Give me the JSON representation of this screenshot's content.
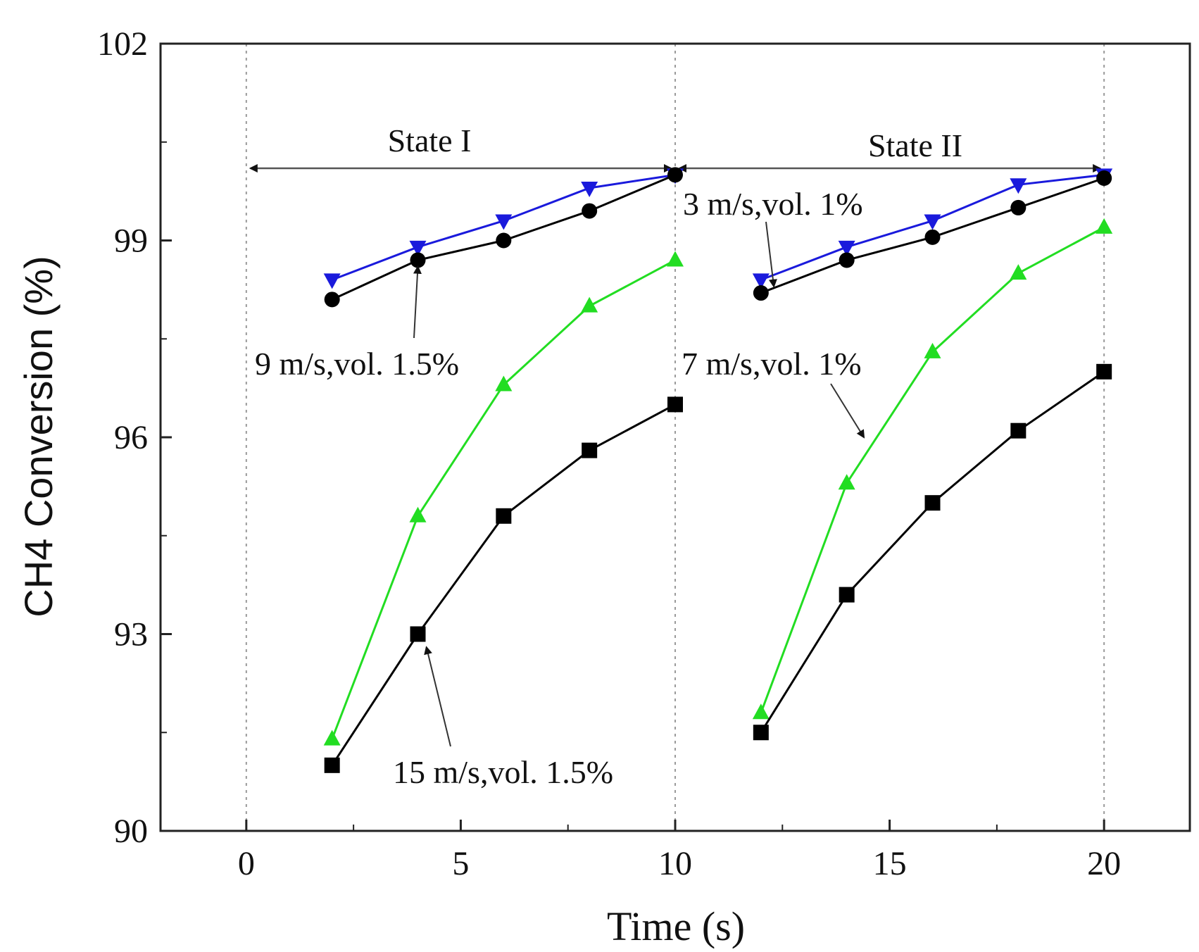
{
  "chart_data": {
    "type": "line",
    "title": "",
    "xlabel": "Time (s)",
    "ylabel": "CH4 Conversion (%)",
    "xlim": [
      -2,
      22
    ],
    "ylim": [
      90,
      102
    ],
    "xticks": [
      0,
      5,
      10,
      15,
      20
    ],
    "xtick_labels": [
      "0",
      "5",
      "10",
      "15",
      "20"
    ],
    "yticks": [
      90,
      93,
      96,
      99,
      102
    ],
    "ytick_labels": [
      "90",
      "93",
      "96",
      "99",
      "102"
    ],
    "grid": "vertical dotted lines at 0, 10, 20",
    "series": [
      {
        "name": "3 m/s,vol. 1%",
        "marker": "triangle-down",
        "color": "#1a1adc",
        "segments": [
          {
            "x": [
              2,
              4,
              6,
              8,
              10
            ],
            "y": [
              98.4,
              98.9,
              99.3,
              99.8,
              100.0
            ]
          },
          {
            "x": [
              12,
              14,
              16,
              18,
              20
            ],
            "y": [
              98.4,
              98.9,
              99.3,
              99.85,
              100.0
            ]
          }
        ]
      },
      {
        "name": "9 m/s,vol. 1.5%",
        "marker": "circle",
        "color": "#000000",
        "segments": [
          {
            "x": [
              2,
              4,
              6,
              8,
              10
            ],
            "y": [
              98.1,
              98.7,
              99.0,
              99.45,
              100.0
            ]
          },
          {
            "x": [
              12,
              14,
              16,
              18,
              20
            ],
            "y": [
              98.2,
              98.7,
              99.05,
              99.5,
              99.95
            ]
          }
        ]
      },
      {
        "name": "7 m/s,vol. 1%",
        "marker": "triangle-up",
        "color": "#22dd22",
        "segments": [
          {
            "x": [
              2,
              4,
              6,
              8,
              10
            ],
            "y": [
              91.4,
              94.8,
              96.8,
              98.0,
              98.7
            ]
          },
          {
            "x": [
              12,
              14,
              16,
              18,
              20
            ],
            "y": [
              91.8,
              95.3,
              97.3,
              98.5,
              99.2
            ]
          }
        ]
      },
      {
        "name": "15 m/s,vol. 1.5%",
        "marker": "square",
        "color": "#000000",
        "segments": [
          {
            "x": [
              2,
              4,
              6,
              8,
              10
            ],
            "y": [
              91.0,
              93.0,
              94.8,
              95.8,
              96.5
            ]
          },
          {
            "x": [
              12,
              14,
              16,
              18,
              20
            ],
            "y": [
              91.5,
              93.6,
              95.0,
              96.1,
              97.0
            ]
          }
        ]
      }
    ],
    "annotations": [
      {
        "text": "State I",
        "range": [
          0,
          10
        ],
        "y": 100.1
      },
      {
        "text": "State II",
        "range": [
          10,
          20
        ],
        "y": 100.1
      },
      {
        "text": "3 m/s,vol. 1%",
        "points_to": [
          12.3,
          98.3
        ]
      },
      {
        "text": "9 m/s,vol. 1.5%",
        "points_to": [
          4.0,
          98.6
        ]
      },
      {
        "text": "7 m/s,vol. 1%",
        "points_to": [
          14.4,
          96.0
        ]
      },
      {
        "text": "15 m/s,vol. 1.5%",
        "points_to": [
          4.2,
          92.8
        ]
      }
    ]
  }
}
